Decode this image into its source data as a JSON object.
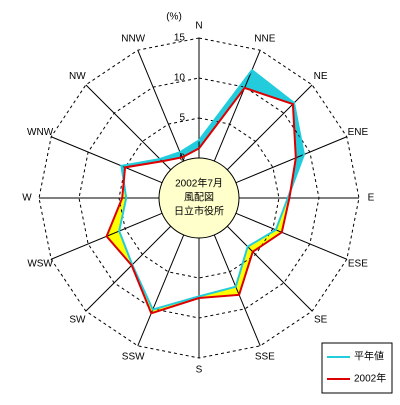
{
  "chart_data": {
    "type": "radar",
    "unit_label": "(%)",
    "center_label": [
      "2002年7月",
      "風配図",
      "日立市役所"
    ],
    "categories": [
      "N",
      "NNE",
      "NE",
      "ENE",
      "E",
      "ESE",
      "SE",
      "SSE",
      "S",
      "SSW",
      "SW",
      "WSW",
      "W",
      "WNW",
      "NW",
      "NNW"
    ],
    "series": [
      {
        "name": "平年値",
        "color": "#22ccdd",
        "values": [
          2.2,
          12.3,
          11.8,
          9.2,
          6.1,
          5.4,
          3.6,
          7.0,
          7.3,
          10.1,
          6.8,
          5.8,
          4.1,
          5.5,
          1.9,
          1.2
        ]
      },
      {
        "name": "2002年",
        "color": "#dd0000",
        "values": [
          1.2,
          9.9,
          11.6,
          8.1,
          6.3,
          6.2,
          4.5,
          8.1,
          7.5,
          10.6,
          6.9,
          7.5,
          4.6,
          5.0,
          1.5,
          0.5
        ]
      }
    ],
    "rlim": [
      0,
      15
    ],
    "rticks": [
      0,
      5,
      10,
      15
    ],
    "excess_color": "#ffff00",
    "center_color": "#ffffcc"
  }
}
